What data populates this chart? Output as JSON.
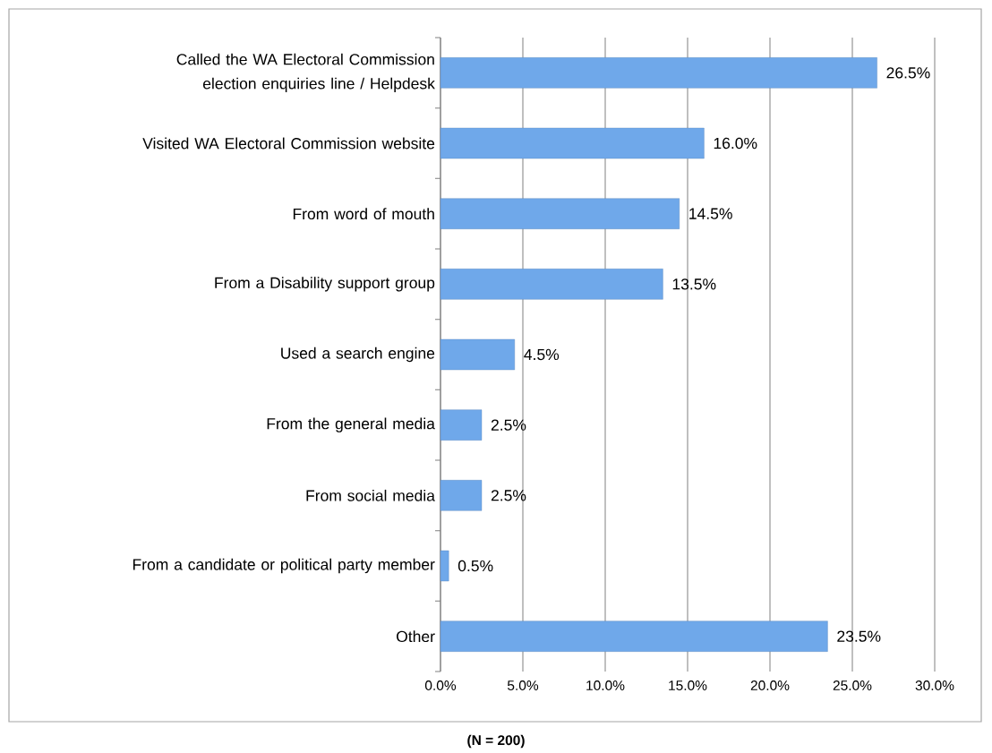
{
  "chart_data": {
    "type": "bar",
    "orientation": "horizontal",
    "categories": [
      "Called the WA Electoral Commission election enquiries line / Helpdesk",
      "Visited WA Electoral Commission website",
      "From word of mouth",
      "From a Disability support group",
      "Used a search engine",
      "From the general media",
      "From social media",
      "From a candidate or political party member",
      "Other"
    ],
    "values": [
      26.5,
      16.0,
      14.5,
      13.5,
      4.5,
      2.5,
      2.5,
      0.5,
      23.5
    ],
    "value_labels": [
      "26.5%",
      "16.0%",
      "14.5%",
      "13.5%",
      "4.5%",
      "2.5%",
      "2.5%",
      "0.5%",
      "23.5%"
    ],
    "color": "#6fa8ea",
    "xlim": [
      0,
      30
    ],
    "xticks": [
      {
        "value": 0,
        "label": "0.0%"
      },
      {
        "value": 5,
        "label": "5.0%"
      },
      {
        "value": 10,
        "label": "10.0%"
      },
      {
        "value": 15,
        "label": "15.0%"
      },
      {
        "value": 20,
        "label": "20.0%"
      },
      {
        "value": 25,
        "label": "25.0%"
      },
      {
        "value": 30,
        "label": "30.0%"
      }
    ],
    "grid": "x",
    "annotations": [
      "**(N = 200)**"
    ]
  }
}
